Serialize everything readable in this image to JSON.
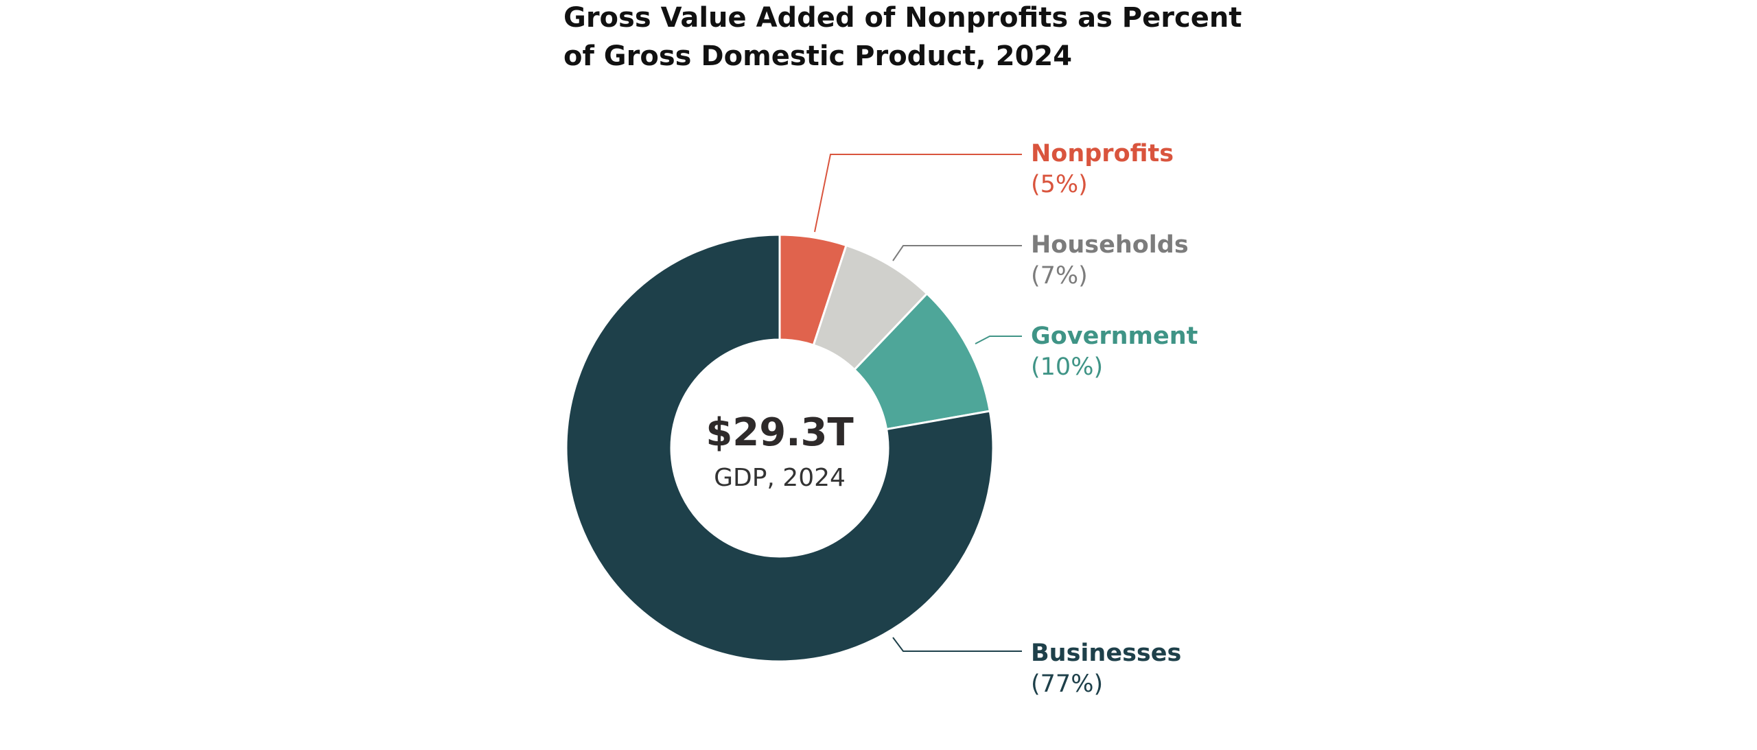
{
  "chart_data": {
    "type": "pie",
    "title": [
      "Gross Value Added of Nonprofits as Percent",
      "of Gross Domestic Product, 2024"
    ],
    "center_label": "$29.3T",
    "center_sublabel": "GDP, 2024",
    "categories": [
      "Nonprofits",
      "Households",
      "Government",
      "Businesses"
    ],
    "values": [
      5,
      7,
      10,
      77
    ],
    "value_labels": [
      "(5%)",
      "(7%)",
      "(10%)",
      "(77%)"
    ],
    "colors": [
      "#e0634d",
      "#d0d0cc",
      "#4ea699",
      "#1e404a"
    ],
    "label_colors": [
      "#d9543d",
      "#7c7c7c",
      "#3f9486",
      "#1e404a"
    ]
  }
}
